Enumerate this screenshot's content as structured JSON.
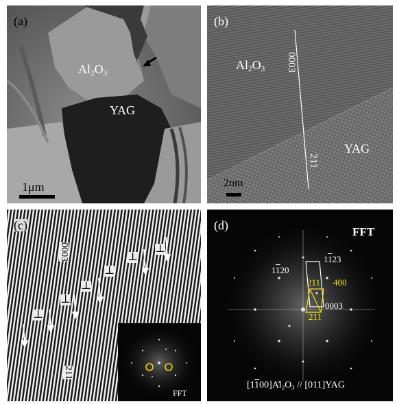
{
  "panel_a": {
    "label": "(a)",
    "phase1": {
      "base": "Al",
      "sub1": "2",
      "mid": "O",
      "sub2": "3"
    },
    "phase2": "YAG",
    "scale": "1μm"
  },
  "panel_b": {
    "label": "(b)",
    "phase1": {
      "base": "Al",
      "sub1": "2",
      "mid": "O",
      "sub2": "3"
    },
    "phase2": "YAG",
    "plane1": "0003",
    "plane2": "211",
    "scale": "2nm"
  },
  "panel_c": {
    "label": "(c)",
    "plane1": "0003",
    "plane2": "211",
    "dislocation_symbol": "⊥",
    "inset_label": "FFT"
  },
  "panel_d": {
    "label": "(d)",
    "title": "FFT",
    "spot1": {
      "pre": "1",
      "bar": "1",
      "post": "20"
    },
    "spot2": {
      "pre": "1",
      "bar": "1",
      "post": "23"
    },
    "spot3": "0003",
    "spot4": "211",
    "spot5": "400",
    "spot6": "211",
    "zone_axis": {
      "open": "[1",
      "bar": "1",
      "close": "00]Al",
      "sub1": "2",
      "o": "O",
      "sub2": "3",
      "rest": " // [011]YAG"
    }
  },
  "colors": {
    "yellow": "#f2e600",
    "white": "#ffffff"
  }
}
